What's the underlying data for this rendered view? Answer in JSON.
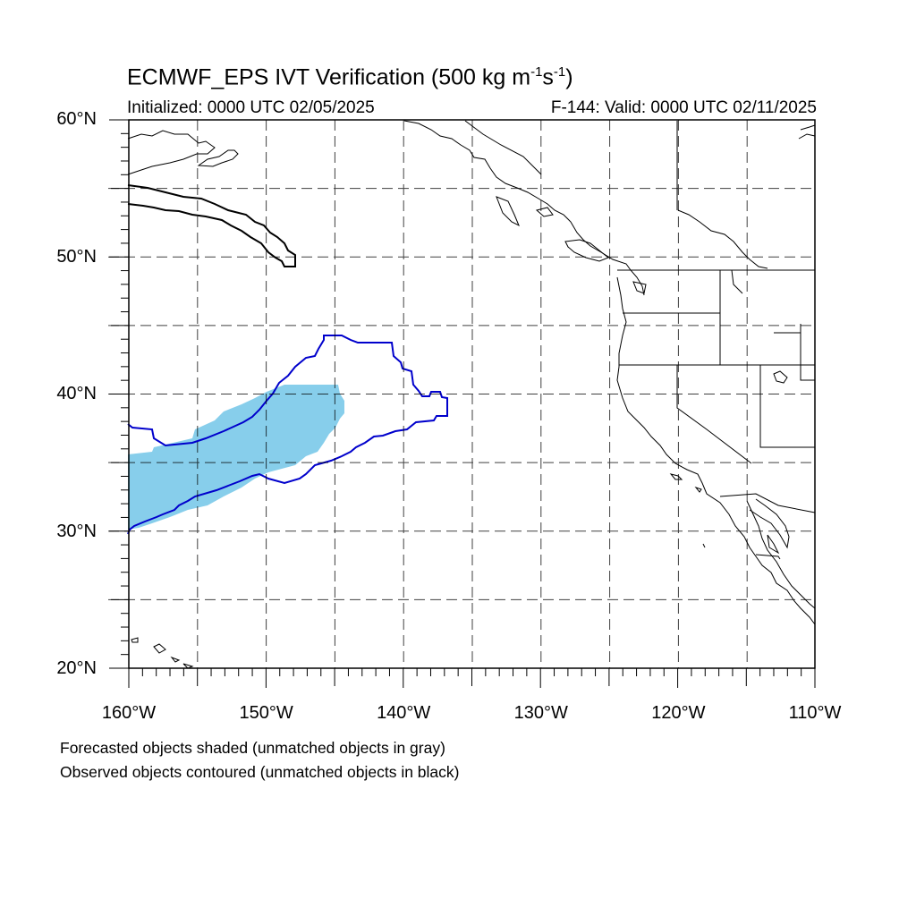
{
  "title": {
    "prefix": "ECMWF_EPS IVT Verification (500 kg m",
    "exp1": "-1",
    "mid": "s",
    "exp2": "-1",
    "suffix": ")"
  },
  "subtitle_left": "Initialized: 0000 UTC 02/05/2025",
  "subtitle_right": "F-144: Valid: 0000 UTC 02/11/2025",
  "map": {
    "lon_range": [
      -160,
      -110
    ],
    "lat_range": [
      20,
      60
    ],
    "grid_lines": "dashed every 5 degrees"
  },
  "lat_labels": [
    "60°N",
    "50°N",
    "40°N",
    "30°N",
    "20°N"
  ],
  "lon_labels": [
    "160°W",
    "150°W",
    "140°W",
    "130°W",
    "120°W",
    "110°W"
  ],
  "colors": {
    "forecast_matched": "#87ceeb",
    "observed_matched": "#0000cc",
    "observed_unmatched": "#000000"
  },
  "notes": [
    "Forecasted objects shaded (unmatched objects in gray)",
    "Observed objects contoured (unmatched objects in black)"
  ]
}
